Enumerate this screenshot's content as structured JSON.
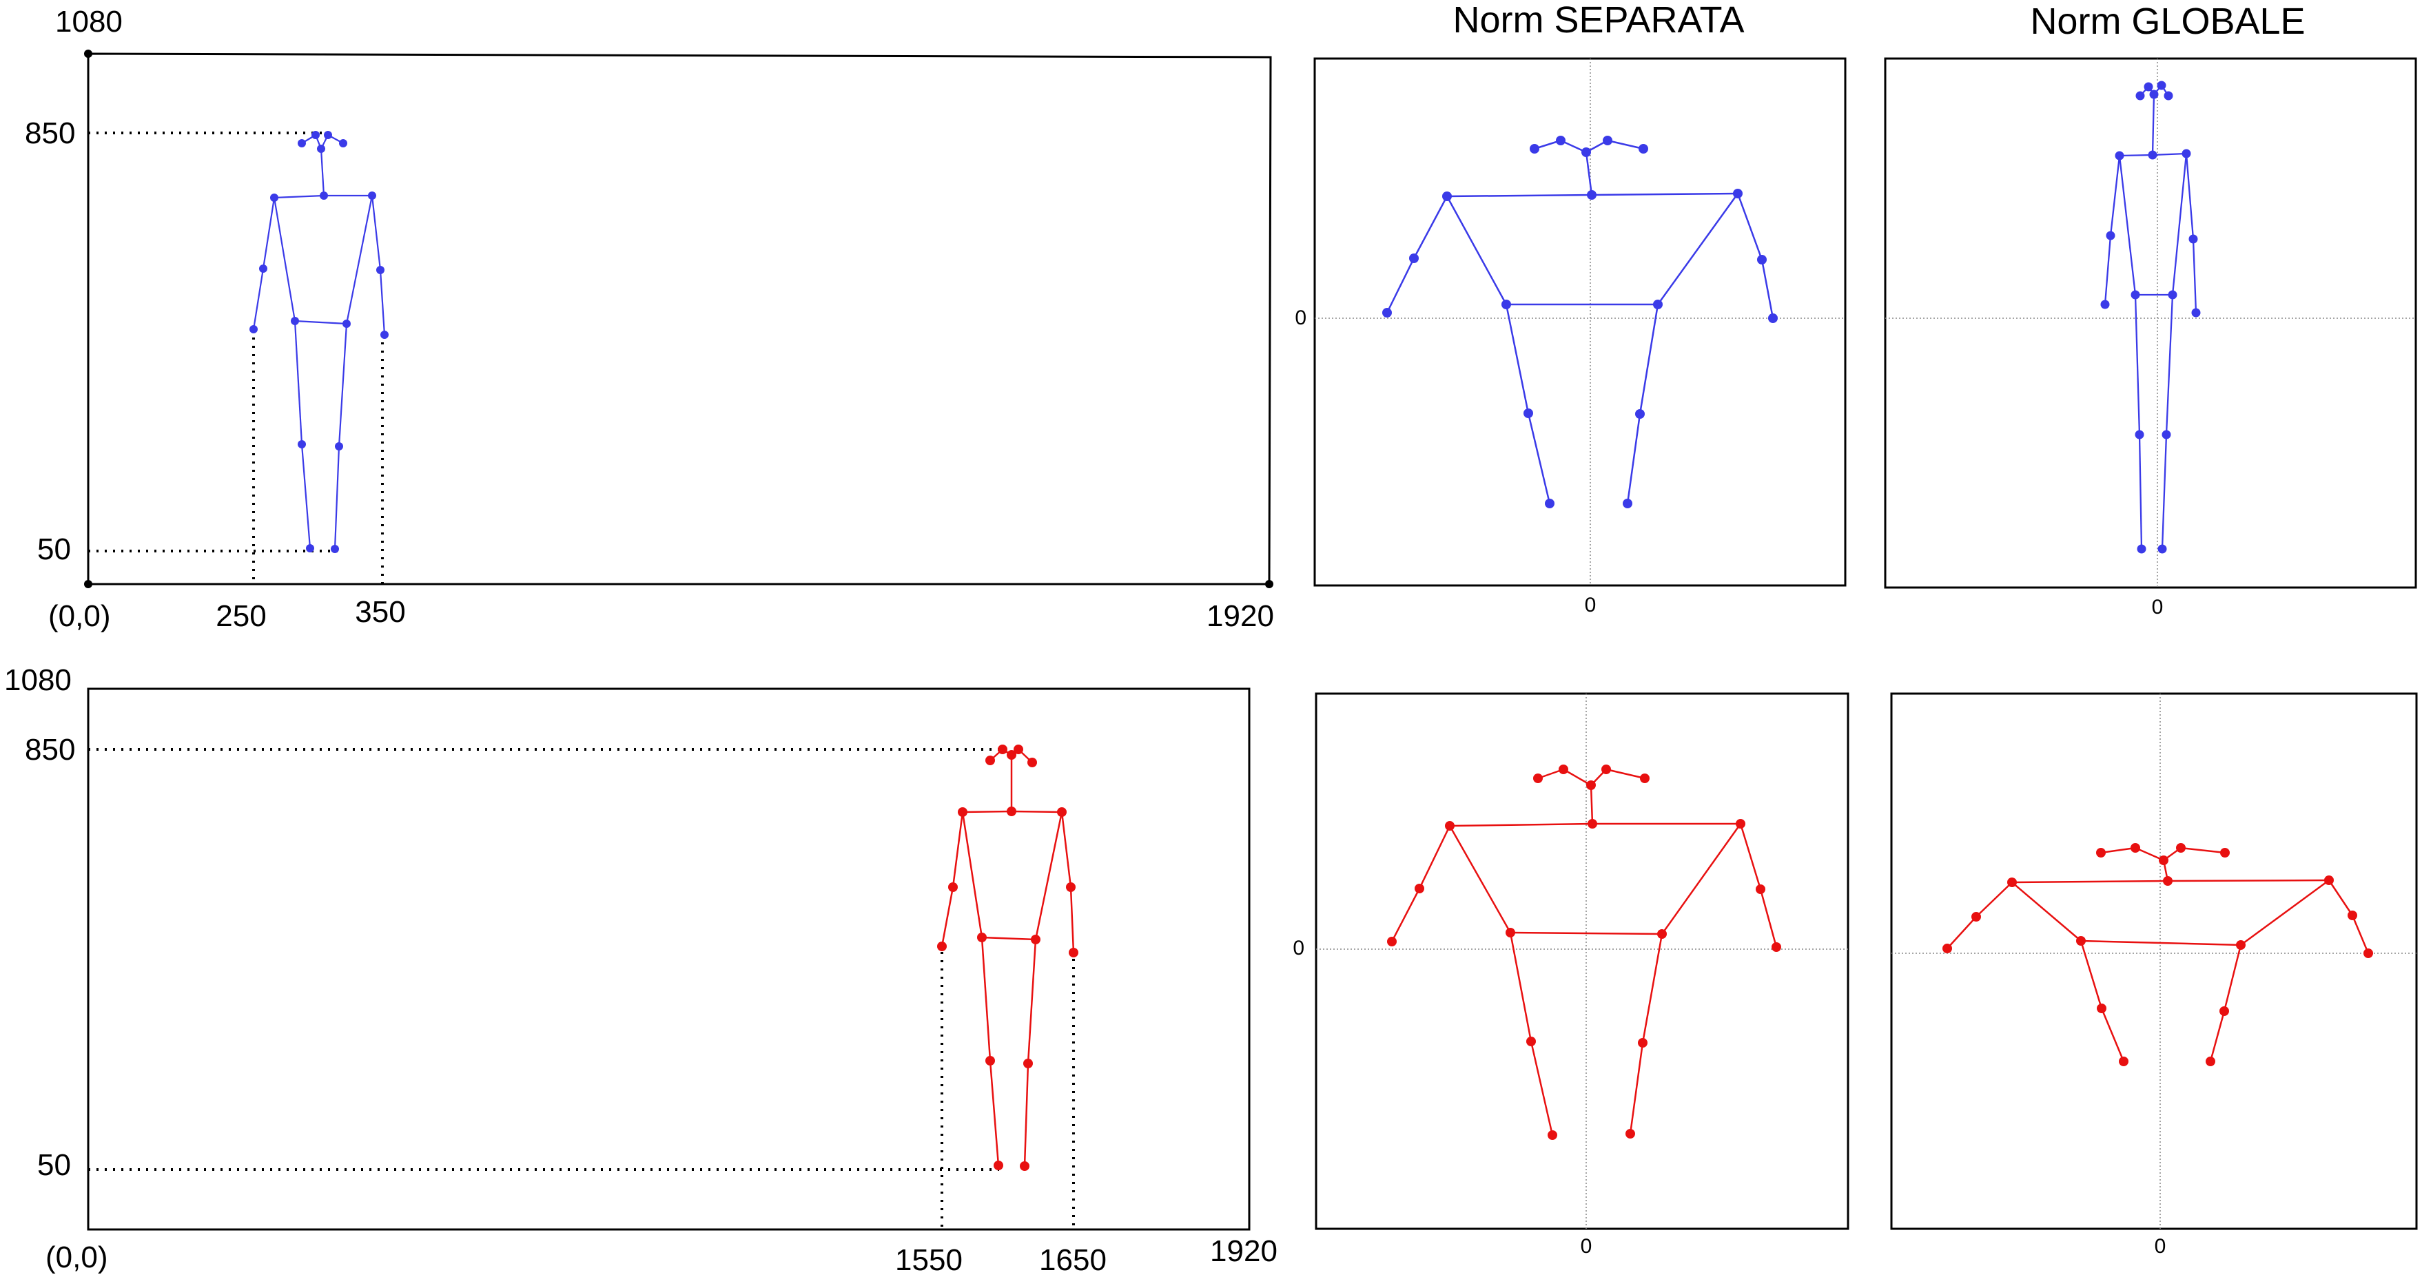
{
  "titles": {
    "separata": "Norm SEPARATA",
    "globale": "Norm GLOBALE"
  },
  "colors": {
    "blue": "#3a3ae8",
    "red": "#e81010",
    "frame": "#000000",
    "guide": "#888888"
  },
  "rows": [
    {
      "id": "blue",
      "frame_labels": {
        "y_top": "1080",
        "y_head": "850",
        "y_feet": "50",
        "origin": "(0,0)",
        "x_left": "250",
        "x_right": "350",
        "x_max": "1920"
      },
      "sep_axis": {
        "x_zero": "0",
        "y_zero": "0"
      },
      "glob_axis": {
        "x_zero": "0"
      }
    },
    {
      "id": "red",
      "frame_labels": {
        "y_top": "1080",
        "y_head": "850",
        "y_feet": "50",
        "origin": "(0,0)",
        "x_left": "1550",
        "x_right": "1650",
        "x_max": "1920"
      },
      "sep_axis": {
        "x_zero": "0",
        "y_zero": "0"
      },
      "glob_axis": {
        "x_zero": "0"
      }
    }
  ]
}
